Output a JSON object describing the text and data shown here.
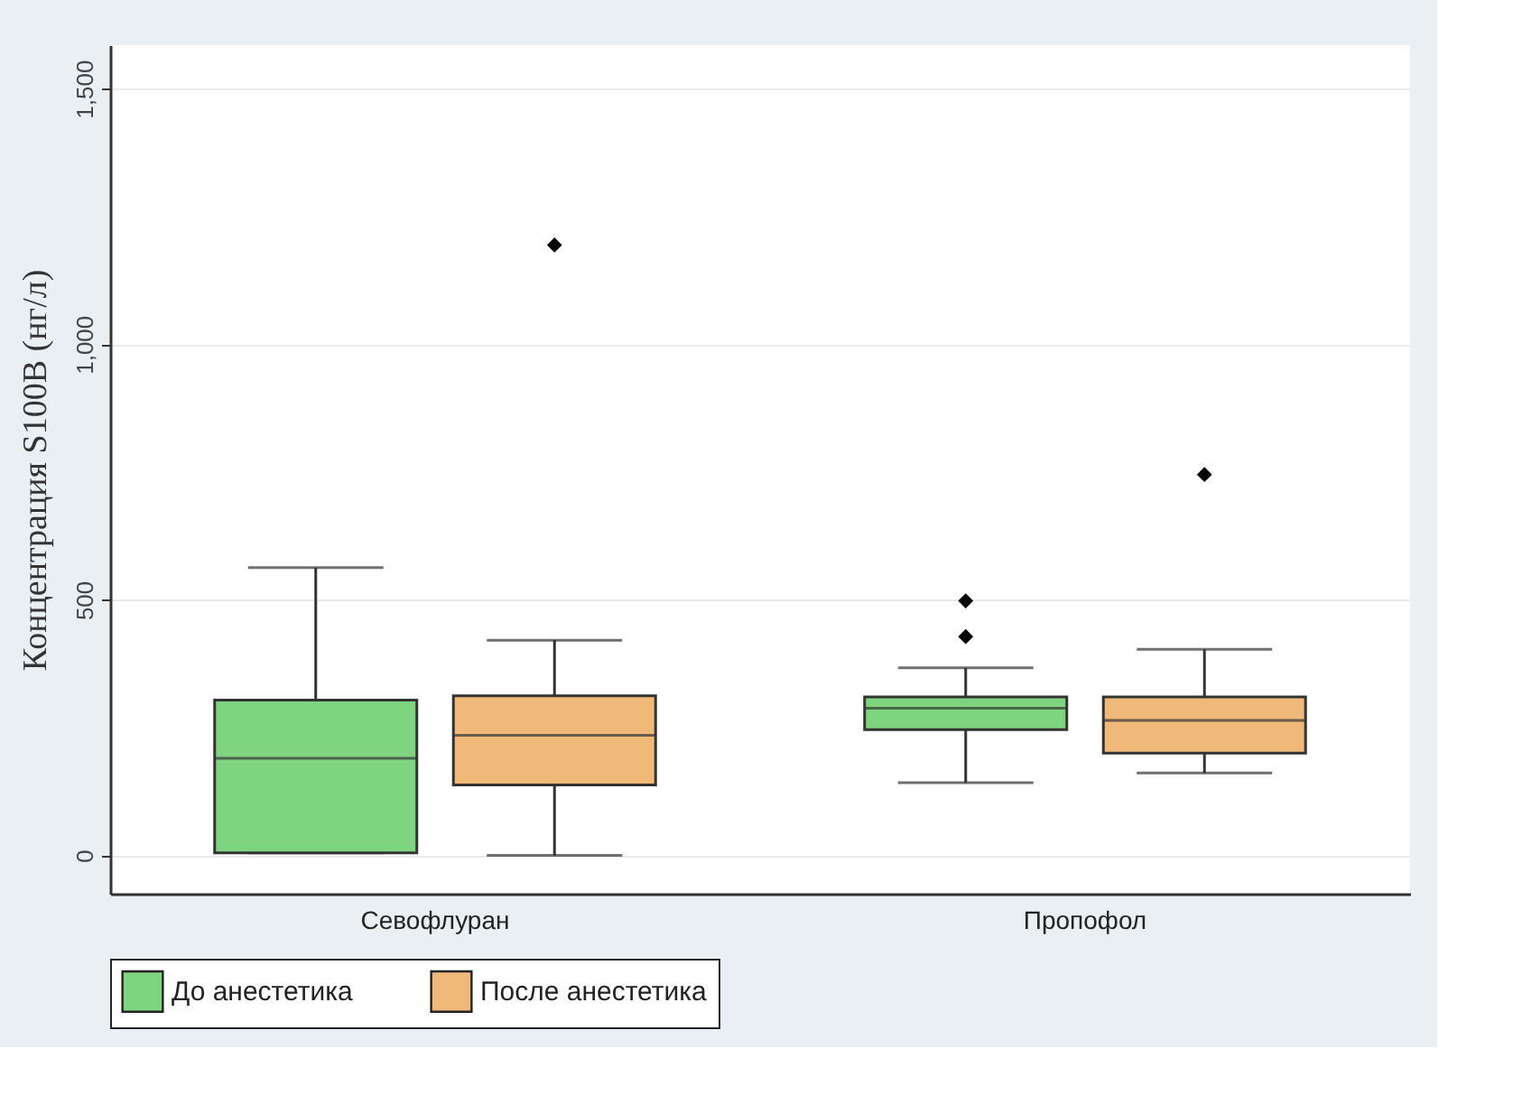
{
  "chart_data": {
    "type": "box",
    "ylabel": "Концентрация S100B (нг/л)",
    "categories": [
      "Севофлуран",
      "Пропофол"
    ],
    "series": [
      {
        "name": "До анестетика",
        "color": "#7fd47f",
        "boxes": [
          {
            "low": 5,
            "q1": 5,
            "median": 190,
            "q3": 304,
            "high": 563
          },
          {
            "low": 142,
            "q1": 246,
            "median": 288,
            "q3": 310,
            "high": 367,
            "outliers": [
              428,
              498
            ]
          }
        ]
      },
      {
        "name": "После анестетика",
        "color": "#f0b97a",
        "boxes": [
          {
            "low": 0,
            "q1": 138,
            "median": 235,
            "q3": 312,
            "high": 421,
            "outliers": [
              1194
            ]
          },
          {
            "low": 161,
            "q1": 200,
            "median": 264,
            "q3": 310,
            "high": 403,
            "outliers": [
              745
            ]
          }
        ]
      }
    ],
    "ylim": [
      -75,
      1585
    ],
    "yticks": [
      0,
      500,
      {
        "value": 1000,
        "label": "1,000"
      },
      {
        "value": 1500,
        "label": "1,500"
      }
    ],
    "grid": "y",
    "legend": "bottom"
  }
}
